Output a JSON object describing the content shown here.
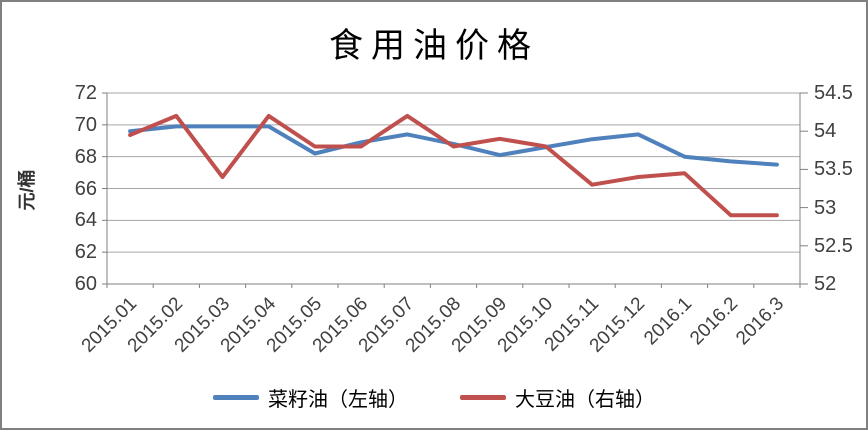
{
  "window": {
    "background": "#ffffff",
    "border_color": "#808080"
  },
  "chart_data": {
    "type": "line",
    "title": "食用油价格",
    "categories": [
      "2015.01",
      "2015.02",
      "2015.03",
      "2015.04",
      "2015.05",
      "2015.06",
      "2015.07",
      "2015.08",
      "2015.09",
      "2015.10",
      "2015.11",
      "2015.12",
      "2016.1",
      "2016.2",
      "2016.3"
    ],
    "series": [
      {
        "name": "菜籽油（左轴）",
        "axis": "left",
        "color": "#4F81BD",
        "values": [
          69.6,
          69.9,
          69.9,
          69.9,
          68.2,
          68.9,
          69.4,
          68.8,
          68.1,
          68.6,
          69.1,
          69.4,
          68.0,
          67.7,
          67.5
        ]
      },
      {
        "name": "大豆油（右轴）",
        "axis": "right",
        "color": "#C0504D",
        "values": [
          53.95,
          54.2,
          53.4,
          54.2,
          53.8,
          53.8,
          54.2,
          53.8,
          53.9,
          53.8,
          53.3,
          53.4,
          53.45,
          52.9,
          52.9
        ]
      }
    ],
    "left_axis": {
      "label": "元/桶",
      "min": 60,
      "max": 72,
      "ticks": [
        "60",
        "62",
        "64",
        "66",
        "68",
        "70",
        "72"
      ]
    },
    "right_axis": {
      "min": 52,
      "max": 54.5,
      "ticks": [
        "52",
        "52.5",
        "53",
        "53.5",
        "54",
        "54.5"
      ]
    },
    "grid": true,
    "legend_position": "bottom",
    "gridline_color": "#a6a6a6",
    "axis_line_color": "#808080"
  }
}
